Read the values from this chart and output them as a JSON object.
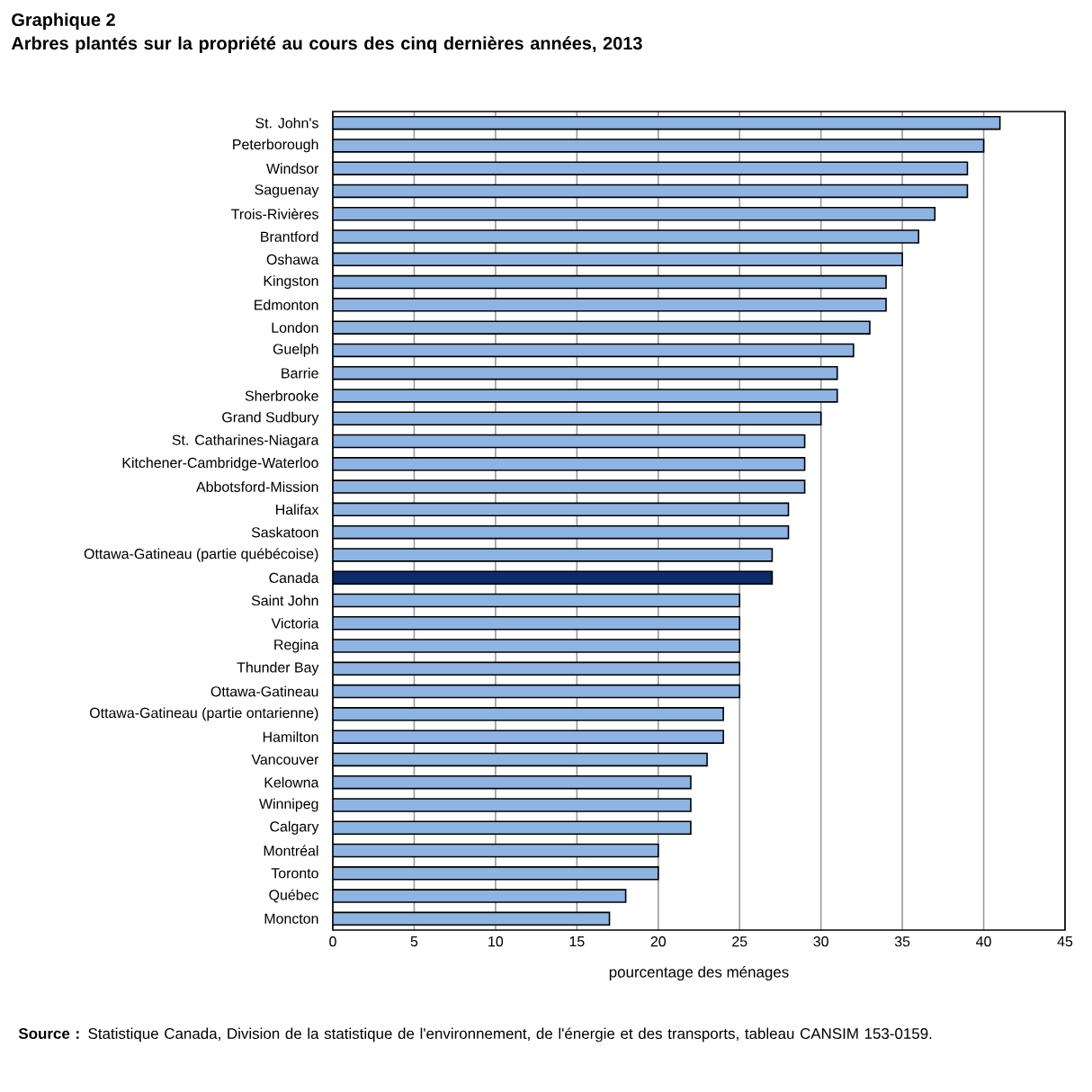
{
  "chart_data": {
    "type": "bar",
    "orientation": "horizontal",
    "title": "Graphique 2",
    "subtitle": "Arbres plantés sur la propriété au cours des cinq dernières années, 2013",
    "xlabel": "pourcentage des ménages",
    "categories": [
      "St. John's",
      "Peterborough",
      "Windsor",
      "Saguenay",
      "Trois-Rivières",
      "Brantford",
      "Oshawa",
      "Kingston",
      "Edmonton",
      "London",
      "Guelph",
      "Barrie",
      "Sherbrooke",
      "Grand Sudbury",
      "St. Catharines-Niagara",
      "Kitchener-Cambridge-Waterloo",
      "Abbotsford-Mission",
      "Halifax",
      "Saskatoon",
      "Ottawa-Gatineau (partie québécoise)",
      "Canada",
      "Saint John",
      "Victoria",
      "Regina",
      "Thunder Bay",
      "Ottawa-Gatineau",
      "Ottawa-Gatineau (partie ontarienne)",
      "Hamilton",
      "Vancouver",
      "Kelowna",
      "Winnipeg",
      "Calgary",
      "Montréal",
      "Toronto",
      "Québec",
      "Moncton"
    ],
    "values": [
      41,
      40,
      39,
      39,
      37,
      36,
      35,
      34,
      34,
      33,
      32,
      31,
      31,
      30,
      29,
      29,
      29,
      28,
      28,
      27,
      27,
      25,
      25,
      25,
      25,
      25,
      24,
      24,
      23,
      22,
      22,
      22,
      20,
      20,
      18,
      17
    ],
    "colors": [
      "#8db4e2",
      "#8db4e2",
      "#8db4e2",
      "#8db4e2",
      "#8db4e2",
      "#8db4e2",
      "#8db4e2",
      "#8db4e2",
      "#8db4e2",
      "#8db4e2",
      "#8db4e2",
      "#8db4e2",
      "#8db4e2",
      "#8db4e2",
      "#8db4e2",
      "#8db4e2",
      "#8db4e2",
      "#8db4e2",
      "#8db4e2",
      "#8db4e2",
      "#0d2a6b",
      "#8db4e2",
      "#8db4e2",
      "#8db4e2",
      "#8db4e2",
      "#8db4e2",
      "#8db4e2",
      "#8db4e2",
      "#8db4e2",
      "#8db4e2",
      "#8db4e2",
      "#8db4e2",
      "#8db4e2",
      "#8db4e2",
      "#8db4e2",
      "#8db4e2"
    ],
    "xlim": [
      0,
      45
    ],
    "xticks": [
      0,
      5,
      10,
      15,
      20,
      25,
      30,
      35,
      40,
      45
    ],
    "grid": "x",
    "annotations": [
      "**Source :** Statistique Canada, Division de la statistique de l'environnement, de l'énergie et des transports, tableau CANSIM 153-0159."
    ]
  }
}
